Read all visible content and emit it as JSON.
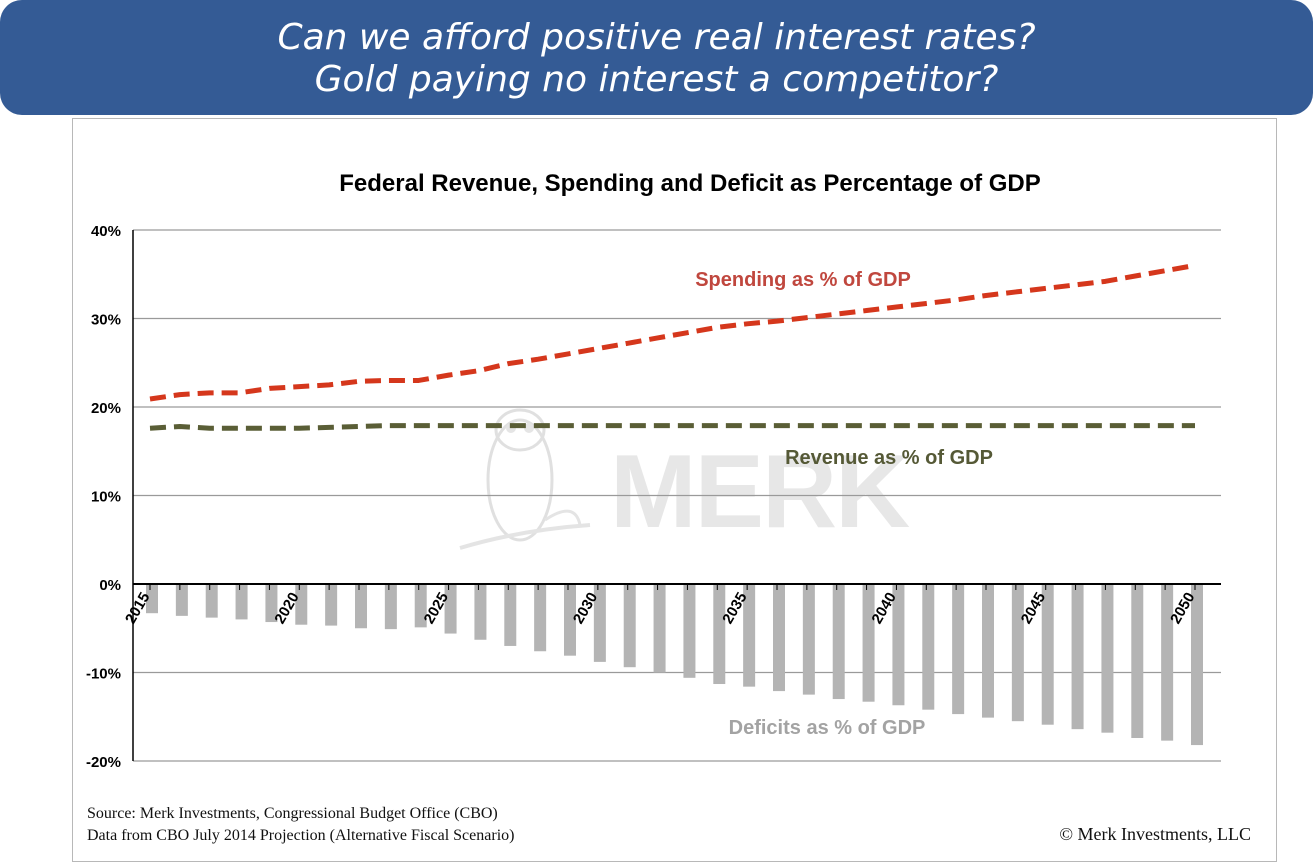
{
  "header": {
    "line1": "Can we afford positive real interest rates?",
    "line2": "Gold paying no interest a competitor?"
  },
  "watermark": {
    "text": "MERK"
  },
  "footer": {
    "source_line1": "Source: Merk Investments, Congressional Budget Office (CBO)",
    "source_line2": "Data from CBO July 2014 Projection (Alternative Fiscal Scenario)",
    "copyright": "© Merk Investments, LLC"
  },
  "colors": {
    "banner": "#345b95",
    "spending": "#d5371c",
    "revenue": "#5a5e36",
    "deficit": "#b4b4b4",
    "spending_label": "#c0473e",
    "revenue_label": "#555936",
    "deficit_label": "#a3a3a3"
  },
  "chart_data": {
    "type": "bar",
    "title": "Federal Revenue, Spending and Deficit as Percentage of GDP",
    "xlabel": "",
    "ylabel": "",
    "ylim": [
      -20,
      40
    ],
    "yticks": [
      40,
      30,
      20,
      10,
      0,
      -10,
      -20
    ],
    "ytick_labels": [
      "40%",
      "30%",
      "20%",
      "10%",
      "0%",
      "-10%",
      "-20%"
    ],
    "x": [
      2015,
      2016,
      2017,
      2018,
      2019,
      2020,
      2021,
      2022,
      2023,
      2024,
      2025,
      2026,
      2027,
      2028,
      2029,
      2030,
      2031,
      2032,
      2033,
      2034,
      2035,
      2036,
      2037,
      2038,
      2039,
      2040,
      2041,
      2042,
      2043,
      2044,
      2045,
      2046,
      2047,
      2048,
      2049,
      2050
    ],
    "xtick_labels": [
      "2015",
      "2020",
      "2025",
      "2030",
      "2035",
      "2040",
      "2045",
      "2050"
    ],
    "grid": true,
    "series": [
      {
        "name": "Spending as % of GDP",
        "type": "line",
        "style": "dashed",
        "values": [
          20.9,
          21.4,
          21.6,
          21.6,
          22.1,
          22.3,
          22.5,
          22.9,
          23.0,
          23.0,
          23.6,
          24.1,
          24.9,
          25.4,
          26.0,
          26.6,
          27.2,
          27.8,
          28.4,
          29.0,
          29.4,
          29.7,
          30.1,
          30.5,
          30.9,
          31.3,
          31.7,
          32.1,
          32.6,
          33.0,
          33.4,
          33.8,
          34.2,
          34.8,
          35.4,
          36.0
        ]
      },
      {
        "name": "Revenue as % of GDP",
        "type": "line",
        "style": "dashed",
        "values": [
          17.6,
          17.8,
          17.6,
          17.6,
          17.6,
          17.6,
          17.7,
          17.8,
          17.9,
          17.9,
          17.9,
          17.9,
          17.9,
          17.9,
          17.9,
          17.9,
          17.9,
          17.9,
          17.9,
          17.9,
          17.9,
          17.9,
          17.9,
          17.9,
          17.9,
          17.9,
          17.9,
          17.9,
          17.9,
          17.9,
          17.9,
          17.9,
          17.9,
          17.9,
          17.9,
          17.9
        ]
      },
      {
        "name": "Deficits as % of GDP",
        "type": "bar",
        "values": [
          -3.3,
          -3.6,
          -3.8,
          -4.0,
          -4.3,
          -4.6,
          -4.7,
          -5.0,
          -5.1,
          -4.9,
          -5.6,
          -6.3,
          -7.0,
          -7.6,
          -8.1,
          -8.8,
          -9.4,
          -10.0,
          -10.6,
          -11.3,
          -11.6,
          -12.1,
          -12.5,
          -13.0,
          -13.3,
          -13.7,
          -14.2,
          -14.7,
          -15.1,
          -15.5,
          -15.9,
          -16.4,
          -16.8,
          -17.4,
          -17.7,
          -18.2
        ]
      }
    ],
    "annotations": [
      {
        "text": "Spending as % of GDP",
        "series": 0
      },
      {
        "text": "Revenue as % of GDP",
        "series": 1
      },
      {
        "text": "Deficits as % of GDP",
        "series": 2
      }
    ]
  }
}
